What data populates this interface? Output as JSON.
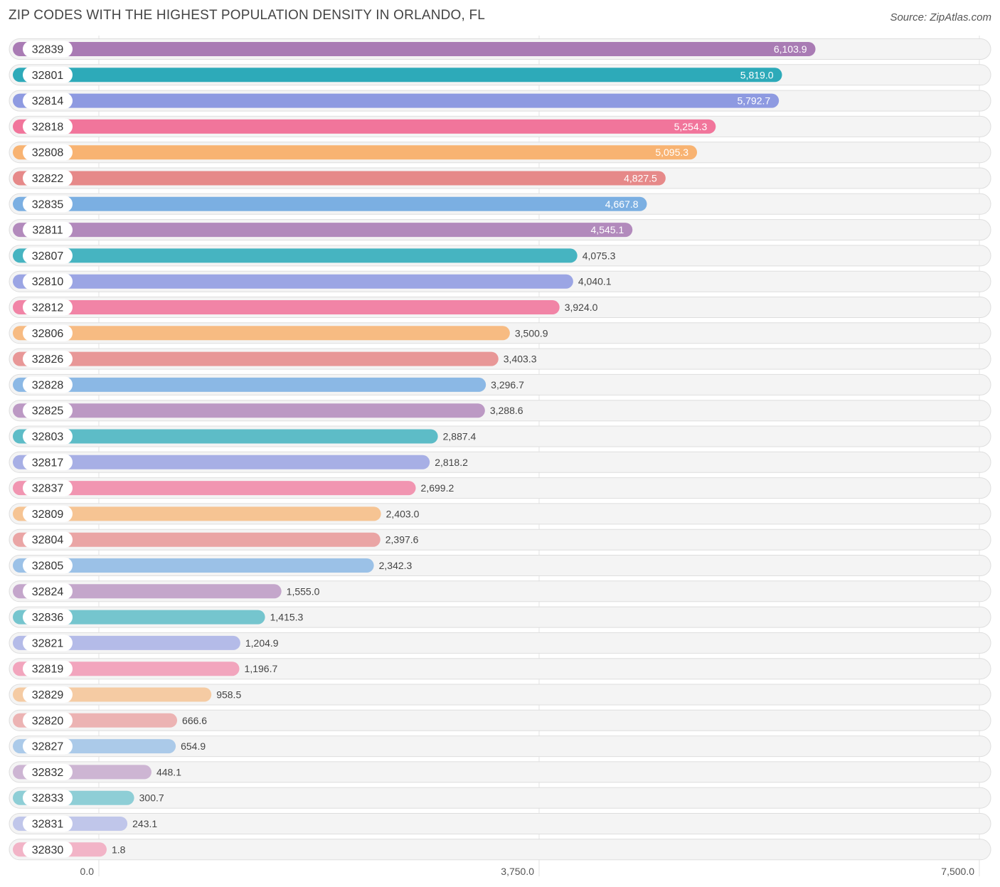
{
  "title": "ZIP CODES WITH THE HIGHEST POPULATION DENSITY IN ORLANDO, FL",
  "source": "Source: ZipAtlas.com",
  "chart_data": {
    "type": "bar",
    "orientation": "horizontal",
    "title": "ZIP CODES WITH THE HIGHEST POPULATION DENSITY IN ORLANDO, FL",
    "xlim": [
      0,
      7500
    ],
    "x_ticks": [
      0,
      3750,
      7500
    ],
    "x_tick_labels": [
      "0.0",
      "3,750.0",
      "7,500.0"
    ],
    "grid": true,
    "categories": [
      "32839",
      "32801",
      "32814",
      "32818",
      "32808",
      "32822",
      "32835",
      "32811",
      "32807",
      "32810",
      "32812",
      "32806",
      "32826",
      "32828",
      "32825",
      "32803",
      "32817",
      "32837",
      "32809",
      "32804",
      "32805",
      "32824",
      "32836",
      "32821",
      "32819",
      "32829",
      "32820",
      "32827",
      "32832",
      "32833",
      "32831",
      "32830"
    ],
    "values": [
      6103.9,
      5819.0,
      5792.7,
      5254.3,
      5095.3,
      4827.5,
      4667.8,
      4545.1,
      4075.3,
      4040.1,
      3924.0,
      3500.9,
      3403.3,
      3296.7,
      3288.6,
      2887.4,
      2818.2,
      2699.2,
      2403.0,
      2397.6,
      2342.3,
      1555.0,
      1415.3,
      1204.9,
      1196.7,
      958.5,
      666.6,
      654.9,
      448.1,
      300.7,
      243.1,
      1.8
    ],
    "value_labels": [
      "6,103.9",
      "5,819.0",
      "5,792.7",
      "5,254.3",
      "5,095.3",
      "4,827.5",
      "4,667.8",
      "4,545.1",
      "4,075.3",
      "4,040.1",
      "3,924.0",
      "3,500.9",
      "3,403.3",
      "3,296.7",
      "3,288.6",
      "2,887.4",
      "2,818.2",
      "2,699.2",
      "2,403.0",
      "2,397.6",
      "2,342.3",
      "1,555.0",
      "1,415.3",
      "1,204.9",
      "1,196.7",
      "958.5",
      "666.6",
      "654.9",
      "448.1",
      "300.7",
      "243.1",
      "1.8"
    ],
    "palette": [
      "#a97bb4",
      "#2aa9b8",
      "#8a96e0",
      "#f06e96",
      "#f7ae68",
      "#e57f7f",
      "#6da7e0"
    ]
  }
}
